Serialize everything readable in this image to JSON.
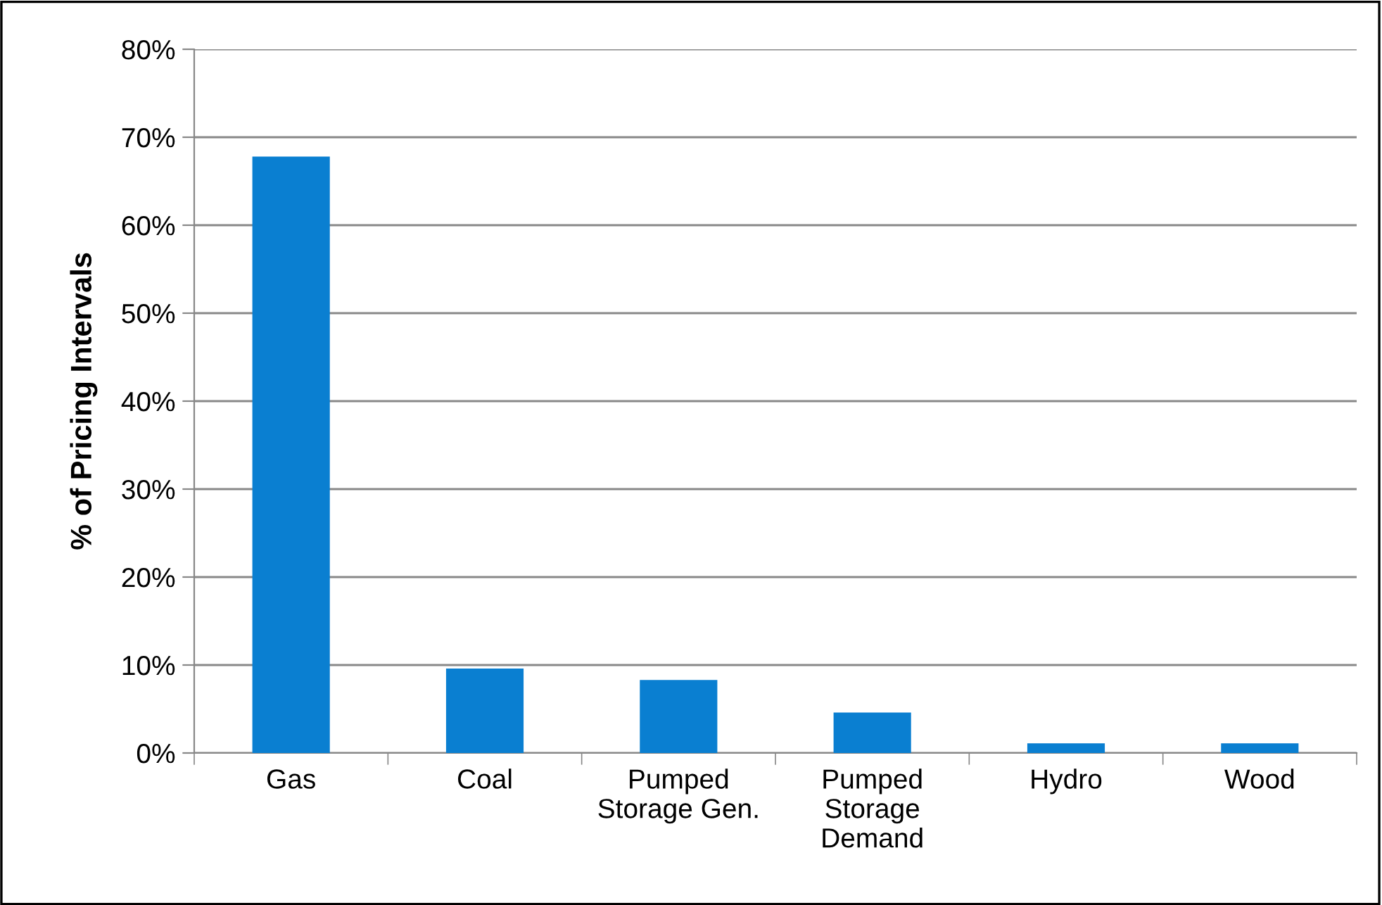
{
  "chart_data": {
    "type": "bar",
    "ylabel": "% of Pricing Intervals",
    "categories": [
      "Gas",
      "Coal",
      "Pumped\nStorage Gen.",
      "Pumped\nStorage\nDemand",
      "Hydro",
      "Wood"
    ],
    "values": [
      67.8,
      9.6,
      8.3,
      4.6,
      1.1,
      1.1
    ],
    "color": "#0a7fd1",
    "ylim": [
      0,
      80
    ],
    "yticks": [
      {
        "value": 0,
        "label": "0%"
      },
      {
        "value": 10,
        "label": "10%"
      },
      {
        "value": 20,
        "label": "20%"
      },
      {
        "value": 30,
        "label": "30%"
      },
      {
        "value": 40,
        "label": "40%"
      },
      {
        "value": 50,
        "label": "50%"
      },
      {
        "value": 60,
        "label": "60%"
      },
      {
        "value": 70,
        "label": "70%"
      },
      {
        "value": 80,
        "label": "80%"
      }
    ],
    "grid": "y",
    "legend": false
  }
}
